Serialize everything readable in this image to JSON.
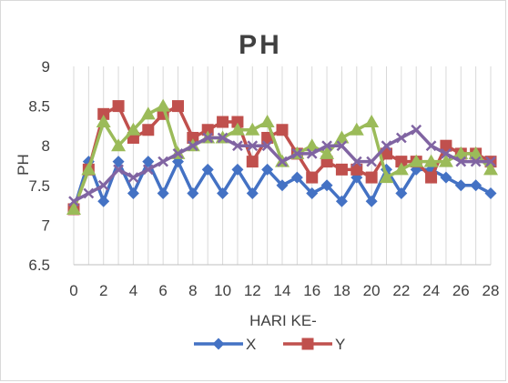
{
  "chart_data": {
    "type": "line",
    "title": "PH",
    "xlabel": "HARI KE-",
    "ylabel": "PH",
    "x": [
      0,
      1,
      2,
      3,
      4,
      5,
      6,
      7,
      8,
      9,
      10,
      11,
      12,
      13,
      14,
      15,
      16,
      17,
      18,
      19,
      20,
      21,
      22,
      23,
      24,
      25,
      26,
      27,
      28
    ],
    "xticks": [
      0,
      2,
      4,
      6,
      8,
      10,
      12,
      14,
      16,
      18,
      20,
      22,
      24,
      26,
      28
    ],
    "ylim": [
      6.5,
      9
    ],
    "yticks": [
      6.5,
      7,
      7.5,
      8,
      8.5,
      9
    ],
    "grid": "vertical",
    "legend": "bottom",
    "series": [
      {
        "name": "X",
        "color": "#4472C4",
        "marker": "diamond",
        "values": [
          7.2,
          7.8,
          7.3,
          7.8,
          7.4,
          7.8,
          7.4,
          7.8,
          7.4,
          7.7,
          7.4,
          7.7,
          7.4,
          7.7,
          7.5,
          7.6,
          7.4,
          7.5,
          7.3,
          7.6,
          7.3,
          7.7,
          7.4,
          7.7,
          7.7,
          7.6,
          7.5,
          7.5,
          7.4
        ]
      },
      {
        "name": "Y",
        "color": "#C0504D",
        "marker": "square",
        "values": [
          7.2,
          7.7,
          8.4,
          8.5,
          8.1,
          8.2,
          8.4,
          8.5,
          8.1,
          8.2,
          8.3,
          8.3,
          7.8,
          8.1,
          8.2,
          7.9,
          7.6,
          7.8,
          7.7,
          7.7,
          7.6,
          7.9,
          7.8,
          7.8,
          7.6,
          8.0,
          7.9,
          7.9,
          7.8
        ]
      },
      {
        "name": "",
        "color": "#9BBB59",
        "marker": "triangle",
        "values": [
          7.2,
          7.7,
          8.3,
          8.0,
          8.2,
          8.4,
          8.5,
          7.9,
          8.0,
          8.1,
          8.1,
          8.2,
          8.2,
          8.3,
          7.8,
          7.9,
          8.0,
          7.9,
          8.1,
          8.2,
          8.3,
          7.6,
          7.7,
          7.8,
          7.8,
          7.8,
          7.9,
          7.9,
          7.7
        ]
      },
      {
        "name": "",
        "color": "#8064A2",
        "marker": "x",
        "values": [
          7.3,
          7.4,
          7.5,
          7.7,
          7.6,
          7.7,
          7.8,
          7.9,
          8.0,
          8.1,
          8.1,
          8.0,
          8.0,
          8.0,
          7.8,
          7.9,
          7.9,
          8.0,
          8.0,
          7.8,
          7.8,
          8.0,
          8.1,
          8.2,
          8.0,
          7.9,
          7.8,
          7.8,
          7.8
        ]
      }
    ]
  }
}
